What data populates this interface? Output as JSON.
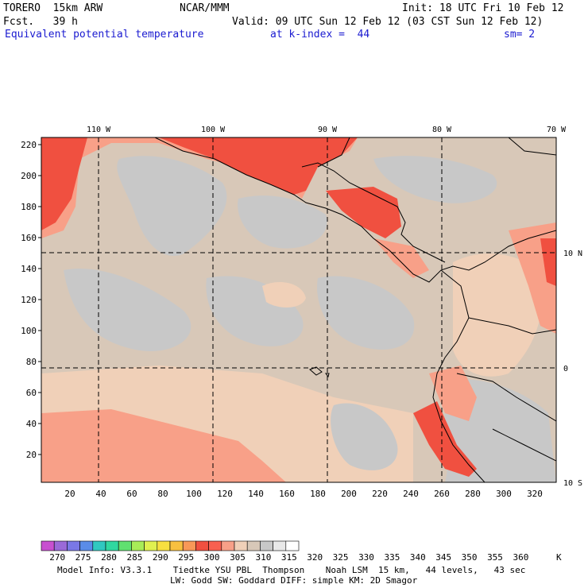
{
  "header": {
    "model": "TORERO  15km ARW",
    "center": "NCAR/MMM",
    "init": "Init: 18 UTC Fri 10 Feb 12",
    "fcst": "Fcst.   39 h",
    "valid": "Valid: 09 UTC Sun 12 Feb 12 (03 CST Sun 12 Feb 12)",
    "field": "Equivalent potential temperature",
    "level": "at k-index =  44",
    "smoothing": "sm= 2"
  },
  "axes": {
    "lon_labels": [
      "110 W",
      "100 W",
      "90 W",
      "80 W",
      "70 W"
    ],
    "lat_labels": [
      "10 N",
      "0",
      "10 S"
    ],
    "y_grid_labels": [
      "20",
      "40",
      "60",
      "80",
      "100",
      "120",
      "140",
      "160",
      "180",
      "200",
      "220"
    ],
    "x_grid_labels": [
      "20",
      "40",
      "60",
      "80",
      "100",
      "120",
      "140",
      "160",
      "180",
      "200",
      "220",
      "240",
      "260",
      "280",
      "300",
      "320"
    ]
  },
  "colorbar": {
    "unit": "K",
    "levels": [
      "270",
      "275",
      "280",
      "285",
      "290",
      "295",
      "300",
      "305",
      "310",
      "315",
      "320",
      "325",
      "330",
      "335",
      "340",
      "345",
      "350",
      "355",
      "360"
    ],
    "colors": [
      "#c850d0",
      "#9a6ad8",
      "#7a78e6",
      "#5a8ce8",
      "#30c8c0",
      "#30d8a0",
      "#60e070",
      "#a8ec58",
      "#e0f050",
      "#f8e040",
      "#f8c040",
      "#f89858",
      "#f05040",
      "#f86050",
      "#f8a088",
      "#f0d0b8",
      "#d8c8b8",
      "#c8c8c8",
      "#e8e8e8",
      "#ffffff"
    ]
  },
  "footer": {
    "line1": "Model Info: V3.3.1    Tiedtke YSU PBL  Thompson    Noah LSM  15 km,   44 levels,   43 sec",
    "line2": "LW: Godd SW: Goddard DIFF: simple KM: 2D Smagor"
  }
}
